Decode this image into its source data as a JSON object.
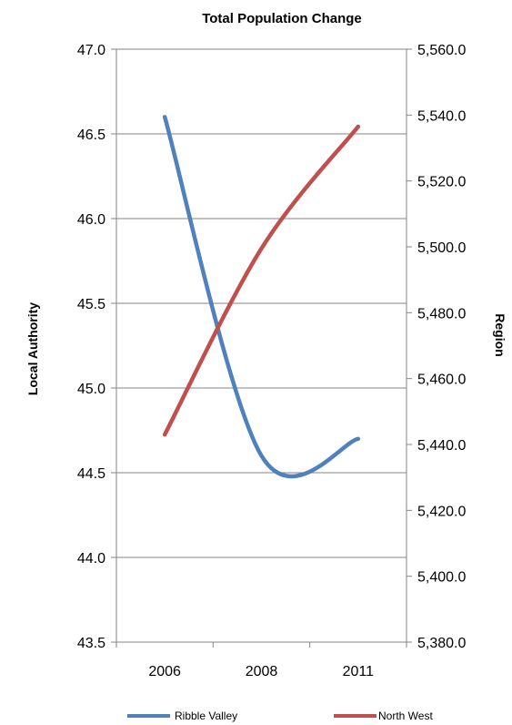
{
  "chart_data": {
    "type": "line",
    "title": "Total Population Change",
    "categories": [
      "2006",
      "2008",
      "2011"
    ],
    "y_left": {
      "label": "Local Authority",
      "ylim": [
        43.5,
        47.0
      ],
      "ticks": [
        "47.0",
        "46.5",
        "46.0",
        "45.5",
        "45.0",
        "44.5",
        "44.0",
        "43.5"
      ]
    },
    "y_right": {
      "label": "Region",
      "ylim": [
        5380.0,
        5560.0
      ],
      "ticks": [
        "5,560.0",
        "5,540.0",
        "5,520.0",
        "5,500.0",
        "5,480.0",
        "5,460.0",
        "5,440.0",
        "5,420.0",
        "5,400.0",
        "5,380.0"
      ]
    },
    "grid": true,
    "legend_position": "bottom",
    "series": [
      {
        "name": "Ribble Valley",
        "axis": "left",
        "color": "#4F81BD",
        "values": [
          46.6,
          44.6,
          44.7
        ],
        "smooth": true
      },
      {
        "name": "North West",
        "axis": "right",
        "color": "#C0504D",
        "values": [
          5443.0,
          5499.5,
          5536.5
        ],
        "smooth": true
      }
    ]
  }
}
